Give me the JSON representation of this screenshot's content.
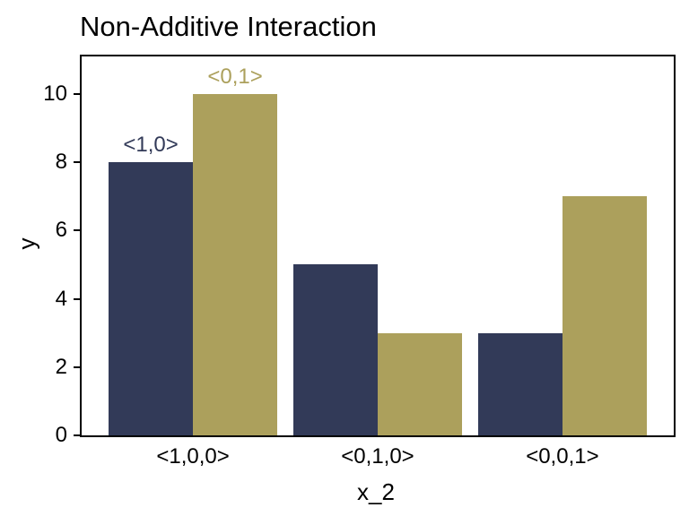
{
  "chart_data": {
    "type": "bar",
    "title": "Non-Additive Interaction",
    "xlabel": "x_2",
    "ylabel": "y",
    "categories": [
      "<1,0,0>",
      "<0,1,0>",
      "<0,0,1>"
    ],
    "series": [
      {
        "name": "<1,0>",
        "color": "#323A58",
        "values": [
          8,
          5,
          3
        ]
      },
      {
        "name": "<0,1>",
        "color": "#ACA05C",
        "values": [
          10,
          3,
          7
        ]
      }
    ],
    "annotations": [
      {
        "text": "<1,0>",
        "series_index": 0,
        "category_index": 0,
        "color": "#323A58"
      },
      {
        "text": "<0,1>",
        "series_index": 1,
        "category_index": 0,
        "color": "#ACA05C"
      }
    ],
    "yticks": [
      0,
      2,
      4,
      6,
      8,
      10
    ],
    "ylim": [
      0,
      11.1
    ],
    "xlim_note": "categorical",
    "grid": false,
    "legend": "none",
    "axis_color": "#000000",
    "text_color": "#000000",
    "background_color": "#ffffff"
  }
}
